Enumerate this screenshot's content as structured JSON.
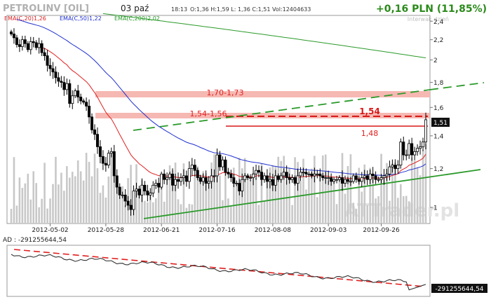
{
  "header": {
    "ticker": "PETROLINV [OIL]",
    "date": "03 paź",
    "time": "18:13",
    "ohlcv": "O:1,36 H:1,59 L: 1,36 C:1,51 Vol:12404633",
    "change": "+0,16 PLN (11,85%)",
    "interval": "Interwał: dzień",
    "change_color": "#2a8a1a"
  },
  "legend": [
    {
      "label": "EMA(C,20)1,26",
      "color": "#e02020"
    },
    {
      "label": "EMA(C,50)1,22",
      "color": "#2030d0"
    },
    {
      "label": "EMA(C,200)2,02",
      "color": "#2a9a2a"
    }
  ],
  "watermark": "ATTrader.pl",
  "chart_data": [
    {
      "type": "candlestick",
      "title": "PETROLINV [OIL]",
      "x_tick_labels": [
        "2012-05-02",
        "2012-05-28",
        "2012-06-21",
        "2012-07-16",
        "2012-08-08",
        "2012-09-03",
        "2012-09-26"
      ],
      "y_tick_labels": [
        "2,4",
        "2,2",
        "2",
        "1,8",
        "1,6",
        "1,4",
        "1,2",
        "1"
      ],
      "y_ticks": [
        2.4,
        2.2,
        2.0,
        1.8,
        1.6,
        1.4,
        1.2,
        1.0
      ],
      "ylim": [
        0.93,
        2.45
      ],
      "log_scale": true,
      "grid": false,
      "last_price": 1.51,
      "last_price_label": "1,51",
      "series": [
        {
          "name": "EMA(C,20)",
          "color": "#e02020",
          "last": 1.26
        },
        {
          "name": "EMA(C,50)",
          "color": "#2030d0",
          "last": 1.22
        },
        {
          "name": "EMA(C,200)",
          "color": "#2a9a2a",
          "last": 2.02
        }
      ],
      "annotations": {
        "zone_upper": {
          "label": "1,70-1,73",
          "low": 1.7,
          "high": 1.73
        },
        "zone_lower": {
          "label": "1,54-1,56",
          "low": 1.54,
          "high": 1.56
        },
        "level_54": {
          "label": "1,54",
          "value": 1.54
        },
        "level_48": {
          "label": "1,48",
          "value": 1.48
        }
      },
      "ohlc_close": [
        2.26,
        2.22,
        2.15,
        2.13,
        2.2,
        2.16,
        2.1,
        2.18,
        2.17,
        2.12,
        2.16,
        2.07,
        2.04,
        1.95,
        1.92,
        1.89,
        1.84,
        1.81,
        1.8,
        1.74,
        1.79,
        1.63,
        1.69,
        1.73,
        1.68,
        1.65,
        1.64,
        1.61,
        1.53,
        1.44,
        1.41,
        1.33,
        1.27,
        1.23,
        1.22,
        1.29,
        1.3,
        1.16,
        1.1,
        1.06,
        1.06,
        1.03,
        1.01,
        0.99,
        1.08,
        1.09,
        1.06,
        1.11,
        1.08,
        1.06,
        1.07,
        1.11,
        1.12,
        1.1,
        1.17,
        1.14,
        1.15,
        1.17,
        1.11,
        1.14,
        1.13,
        1.15,
        1.16,
        1.13,
        1.2,
        1.22,
        1.19,
        1.15,
        1.13,
        1.15,
        1.12,
        1.13,
        1.16,
        1.16,
        1.28,
        1.21,
        1.25,
        1.18,
        1.17,
        1.15,
        1.12,
        1.12,
        1.08,
        1.14,
        1.16,
        1.15,
        1.15,
        1.17,
        1.19,
        1.18,
        1.14,
        1.16,
        1.13,
        1.14,
        1.11,
        1.16,
        1.14,
        1.16,
        1.18,
        1.15,
        1.14,
        1.15,
        1.12,
        1.16,
        1.18,
        1.18,
        1.17,
        1.17,
        1.16,
        1.17,
        1.17,
        1.16,
        1.15,
        1.15,
        1.15,
        1.13,
        1.14,
        1.14,
        1.15,
        1.12,
        1.14,
        1.13,
        1.13,
        1.16,
        1.14,
        1.13,
        1.15,
        1.16,
        1.14,
        1.17,
        1.16,
        1.14,
        1.14,
        1.15,
        1.16,
        1.17,
        1.21,
        1.22,
        1.2,
        1.22,
        1.36,
        1.28,
        1.28,
        1.35,
        1.28,
        1.3,
        1.32,
        1.33,
        1.36,
        1.51
      ],
      "volume_scale_note": "relative"
    },
    {
      "type": "line",
      "title": "AD",
      "label": "AD : -291255644,54",
      "last_value_label": "-291255644,54",
      "trend_line": "downward (dashed red)"
    }
  ]
}
